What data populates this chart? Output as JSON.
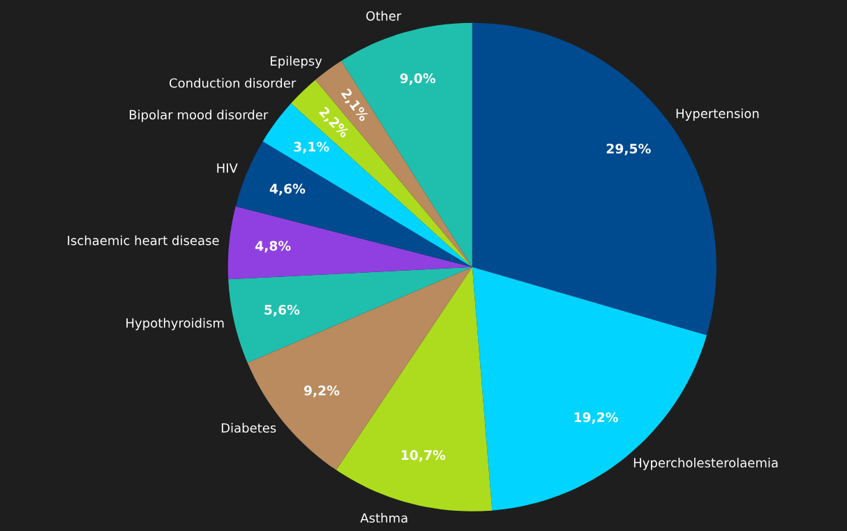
{
  "chart_data": {
    "type": "pie",
    "categories": [
      "Hypertension",
      "Hypercholesterolaemia",
      "Asthma",
      "Diabetes",
      "Hypothyroidism",
      "Ischaemic heart disease",
      "HIV",
      "Bipolar mood disorder",
      "Conduction disorder",
      "Epilepsy",
      "Other"
    ],
    "values": [
      29.5,
      19.2,
      10.7,
      9.2,
      5.6,
      4.8,
      4.6,
      3.1,
      2.2,
      2.1,
      9.0
    ],
    "colors": [
      "#004a8f",
      "#00d4ff",
      "#addc1f",
      "#b98b5f",
      "#20bfad",
      "#9040e0",
      "#004a8f",
      "#00d4ff",
      "#addc1f",
      "#b98b5f",
      "#20bfad"
    ],
    "value_labels": [
      "29,5%",
      "19,2%",
      "10,7%",
      "9,2%",
      "5,6%",
      "4,8%",
      "4,6%",
      "3,1%",
      "2,2%",
      "2,1%",
      "9,0%"
    ]
  }
}
